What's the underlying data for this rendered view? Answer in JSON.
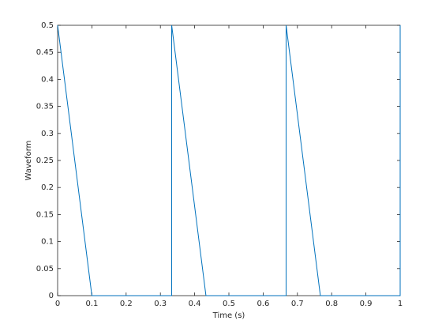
{
  "chart_data": {
    "type": "line",
    "xlabel": "Time (s)",
    "ylabel": "Waveform",
    "x": [
      0,
      0.1,
      0.333,
      0.333,
      0.433,
      0.667,
      0.667,
      0.767,
      1,
      1
    ],
    "series": [
      {
        "color": "#0072bd",
        "values": [
          0.5,
          0,
          0,
          0.5,
          0,
          0,
          0.5,
          0,
          0,
          0.5
        ]
      }
    ],
    "xlim": [
      0,
      1
    ],
    "xticks": [
      0,
      0.1,
      0.2,
      0.3,
      0.4,
      0.5,
      0.6,
      0.7,
      0.8,
      0.9,
      1
    ],
    "ylim": [
      0,
      0.5
    ],
    "yticks": [
      0,
      0.05,
      0.1,
      0.15,
      0.2,
      0.25,
      0.3,
      0.35,
      0.4,
      0.45,
      0.5
    ],
    "grid": false
  }
}
